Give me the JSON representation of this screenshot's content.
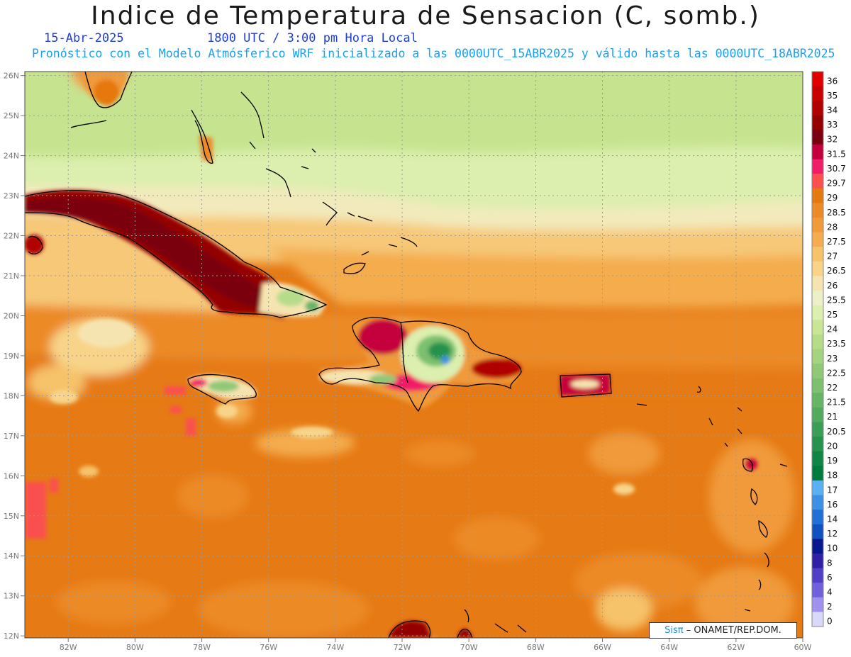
{
  "title": "Indice de Temperatura de Sensacion (C, somb.)",
  "date": "15-Abr-2025",
  "time": "1800 UTC / 3:00 pm Hora Local",
  "subtitle": "Pronóstico con el Modelo Atmósferico WRF inicializado a las 0000UTC_15ABR2025 y válido hasta las  0000UTC_18ABR2025",
  "credit": {
    "brand": "Sisπ",
    "org": "– ONAMET/REP.DOM."
  },
  "lat_ticks": [
    "26N",
    "25N",
    "24N",
    "23N",
    "22N",
    "21N",
    "20N",
    "19N",
    "18N",
    "17N",
    "16N",
    "15N",
    "14N",
    "13N",
    "12N"
  ],
  "lon_ticks": [
    "82W",
    "80W",
    "78W",
    "76W",
    "74W",
    "72W",
    "70W",
    "68W",
    "66W",
    "64W",
    "62W",
    "60W"
  ],
  "legend": [
    {
      "label": "36",
      "color": "#e00000"
    },
    {
      "label": "35",
      "color": "#c80000"
    },
    {
      "label": "34",
      "color": "#b00000"
    },
    {
      "label": "33",
      "color": "#940000"
    },
    {
      "label": "32",
      "color": "#7a0010"
    },
    {
      "label": "31.5",
      "color": "#c4003c"
    },
    {
      "label": "30.7",
      "color": "#f01e68"
    },
    {
      "label": "29.7",
      "color": "#fa5050"
    },
    {
      "label": "29",
      "color": "#e67810"
    },
    {
      "label": "28.5",
      "color": "#ec8a28"
    },
    {
      "label": "28",
      "color": "#f09a3a"
    },
    {
      "label": "27.5",
      "color": "#f4ac4e"
    },
    {
      "label": "27",
      "color": "#f6c26a"
    },
    {
      "label": "26.5",
      "color": "#f8d48a"
    },
    {
      "label": "26",
      "color": "#f6e4b0"
    },
    {
      "label": "25.5",
      "color": "#ecefc8"
    },
    {
      "label": "25",
      "color": "#dcefae"
    },
    {
      "label": "24",
      "color": "#c8e696"
    },
    {
      "label": "23.5",
      "color": "#b6dc8a"
    },
    {
      "label": "23",
      "color": "#a4d480"
    },
    {
      "label": "22.5",
      "color": "#90c878"
    },
    {
      "label": "22",
      "color": "#7cc070"
    },
    {
      "label": "21.5",
      "color": "#66b466"
    },
    {
      "label": "21",
      "color": "#52aa5e"
    },
    {
      "label": "20.5",
      "color": "#3c9e56"
    },
    {
      "label": "20",
      "color": "#26924e"
    },
    {
      "label": "19",
      "color": "#108646"
    },
    {
      "label": "18",
      "color": "#007c3e"
    },
    {
      "label": "17",
      "color": "#5ab0f0"
    },
    {
      "label": "16",
      "color": "#3c90e6"
    },
    {
      "label": "14",
      "color": "#2070d8"
    },
    {
      "label": "12",
      "color": "#1050c0"
    },
    {
      "label": "10",
      "color": "#0a1890"
    },
    {
      "label": "8",
      "color": "#3020a8"
    },
    {
      "label": "6",
      "color": "#5040c8"
    },
    {
      "label": "4",
      "color": "#7060dc"
    },
    {
      "label": "2",
      "color": "#a090f0"
    },
    {
      "label": "0",
      "color": "#d8d8f8"
    }
  ]
}
